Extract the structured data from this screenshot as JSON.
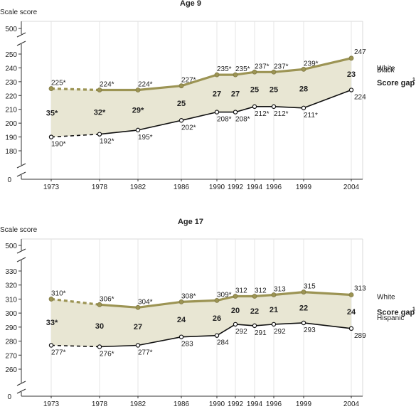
{
  "chart_data": [
    {
      "type": "line",
      "title": "Age 9",
      "ylabel": "Scale score",
      "ylim": [
        180,
        250
      ],
      "axis_break_top": "500",
      "axis_zero": "0",
      "yticks": [
        180,
        190,
        200,
        210,
        220,
        230,
        240,
        250
      ],
      "x": [
        "1973",
        "1978",
        "1982",
        "1986",
        "1990",
        "1992",
        "1994",
        "1996",
        "1999",
        "2004"
      ],
      "series": [
        {
          "name": "White",
          "color": "#9c9454",
          "values": [
            225,
            224,
            224,
            227,
            235,
            235,
            237,
            237,
            239,
            247
          ],
          "labels": [
            "225*",
            "224*",
            "224*",
            "227*",
            "235*",
            "235*",
            "237*",
            "237*",
            "239*",
            "247"
          ]
        },
        {
          "name": "Black",
          "color": "#111111",
          "values": [
            190,
            192,
            195,
            202,
            208,
            208,
            212,
            212,
            211,
            224
          ],
          "labels": [
            "190*",
            "192*",
            "195*",
            "202*",
            "208*",
            "208*",
            "212*",
            "212*",
            "211*",
            "224"
          ]
        }
      ],
      "gap_label": "Score gap",
      "gap_footnote": "1",
      "gap_values": [
        "35*",
        "32*",
        "29*",
        "25",
        "27",
        "27",
        "25",
        "25",
        "28",
        "23"
      ]
    },
    {
      "type": "line",
      "title": "Age 17",
      "ylabel": "Scale score",
      "ylim": [
        260,
        330
      ],
      "axis_break_top": "500",
      "axis_zero": "0",
      "yticks": [
        260,
        270,
        280,
        290,
        300,
        310,
        320,
        330
      ],
      "x": [
        "1973",
        "1978",
        "1982",
        "1986",
        "1990",
        "1992",
        "1994",
        "1996",
        "1999",
        "2004"
      ],
      "series": [
        {
          "name": "White",
          "color": "#9c9454",
          "values": [
            310,
            306,
            304,
            308,
            309,
            312,
            312,
            313,
            315,
            313
          ],
          "labels": [
            "310*",
            "306*",
            "304*",
            "308*",
            "309*",
            "312",
            "312",
            "313",
            "315",
            "313"
          ]
        },
        {
          "name": "Hispanic",
          "color": "#111111",
          "values": [
            277,
            276,
            277,
            283,
            284,
            292,
            291,
            292,
            293,
            289
          ],
          "labels": [
            "277*",
            "276*",
            "277*",
            "283",
            "284",
            "292",
            "291",
            "292",
            "293",
            "289"
          ]
        }
      ],
      "gap_label": "Score gap",
      "gap_footnote": "1",
      "gap_values": [
        "33*",
        "30",
        "27",
        "24",
        "26",
        "20",
        "22",
        "21",
        "22",
        "24"
      ]
    }
  ]
}
